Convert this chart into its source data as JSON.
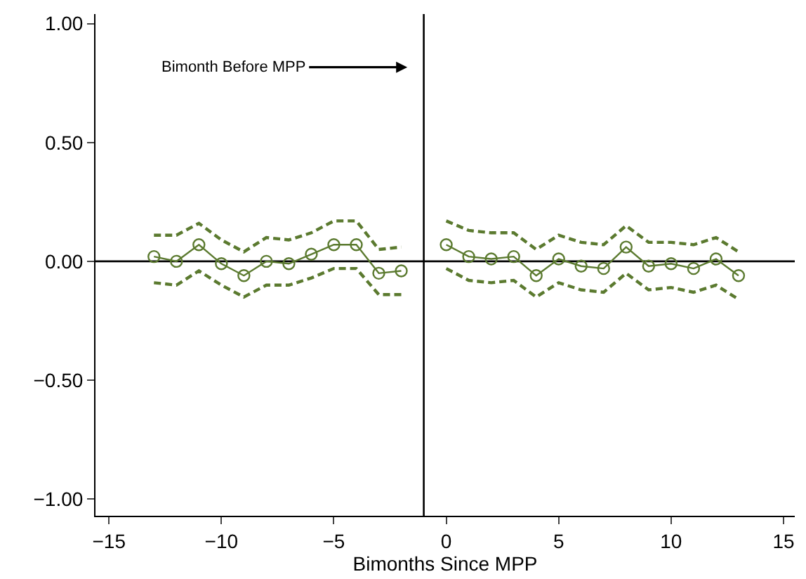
{
  "chart_data": {
    "type": "line",
    "xlabel": "Bimonths Since MPP",
    "x": [
      -13,
      -12,
      -11,
      -10,
      -9,
      -8,
      -7,
      -6,
      -5,
      -4,
      -3,
      -2,
      -1,
      0,
      1,
      2,
      3,
      4,
      5,
      6,
      7,
      8,
      9,
      10,
      11,
      12,
      13
    ],
    "series": [
      {
        "color": "#5b7a2f",
        "marker": "none",
        "line_style": "dashed",
        "values": [
          0.11,
          0.11,
          0.16,
          0.09,
          0.04,
          0.1,
          0.09,
          0.12,
          0.17,
          0.17,
          0.05,
          0.06,
          null,
          0.17,
          0.13,
          0.12,
          0.12,
          0.05,
          0.11,
          0.08,
          0.07,
          0.15,
          0.08,
          0.08,
          0.07,
          0.1,
          0.04
        ]
      },
      {
        "color": "#5b7a2f",
        "marker": "none",
        "line_style": "dashed",
        "values": [
          -0.09,
          -0.1,
          -0.04,
          -0.1,
          -0.15,
          -0.1,
          -0.1,
          -0.07,
          -0.03,
          -0.03,
          -0.14,
          -0.14,
          null,
          -0.03,
          -0.08,
          -0.09,
          -0.08,
          -0.15,
          -0.09,
          -0.12,
          -0.13,
          -0.05,
          -0.12,
          -0.11,
          -0.13,
          -0.1,
          -0.16
        ]
      },
      {
        "color": "#5b7a2f",
        "marker": "circle",
        "line_style": "solid",
        "values": [
          0.02,
          0.0,
          0.07,
          -0.01,
          -0.06,
          0.0,
          -0.01,
          0.03,
          0.07,
          0.07,
          -0.05,
          -0.04,
          null,
          0.07,
          0.02,
          0.01,
          0.02,
          -0.06,
          0.01,
          -0.02,
          -0.03,
          0.06,
          -0.02,
          -0.01,
          -0.03,
          0.01,
          -0.06
        ]
      }
    ],
    "xlim": [
      -15.6,
      15.5
    ],
    "ylim": [
      -1.07,
      1.04
    ],
    "xticks": [
      {
        "value": -15,
        "label": "−15"
      },
      {
        "value": -10,
        "label": "−10"
      },
      {
        "value": -5,
        "label": "−5"
      },
      0,
      5,
      10,
      15
    ],
    "yticks": [
      {
        "value": -1,
        "label": "−1.00"
      },
      {
        "value": -0.5,
        "label": "−0.50"
      },
      {
        "value": 0,
        "label": "0.00"
      },
      {
        "value": 0.5,
        "label": "0.50"
      },
      {
        "value": 1,
        "label": "1.00"
      }
    ],
    "ref_lines": [
      {
        "axis": "x",
        "value": -1,
        "color": "#000000"
      },
      {
        "axis": "y",
        "value": 0,
        "color": "#000000"
      }
    ],
    "annotations": [
      "Bimonth Before MPP"
    ],
    "grid": false
  }
}
